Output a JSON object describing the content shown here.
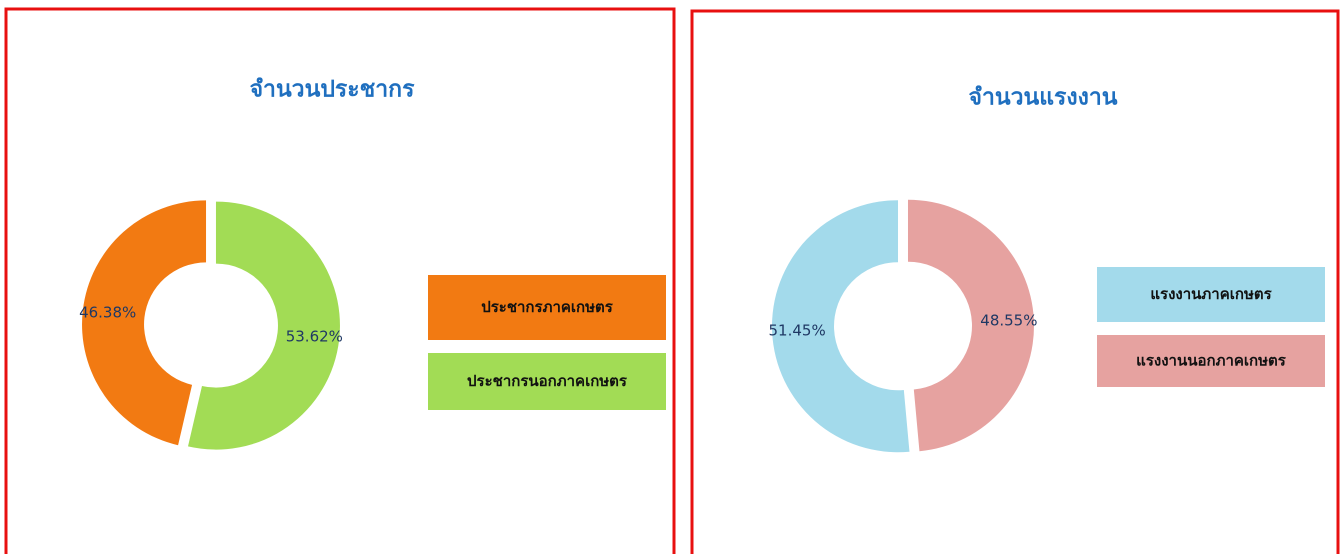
{
  "chart_data": [
    {
      "type": "pie",
      "title": "จำนวนประชากร",
      "categories": [
        "ประชากรภาคเกษตร",
        "ประชากรนอกภาคเกษตร"
      ],
      "values": [
        46.38,
        53.62
      ],
      "value_labels": [
        "46.38%",
        "53.62%"
      ],
      "colors": [
        "#f27a12",
        "#a2dc55"
      ]
    },
    {
      "type": "pie",
      "title": "จำนวนแรงงาน",
      "categories": [
        "แรงงานภาคเกษตร",
        "แรงงานนอกภาคเกษตร"
      ],
      "values": [
        51.45,
        48.55
      ],
      "value_labels": [
        "51.45%",
        "48.55%"
      ],
      "colors": [
        "#a3daeb",
        "#e6a2a0"
      ]
    }
  ]
}
